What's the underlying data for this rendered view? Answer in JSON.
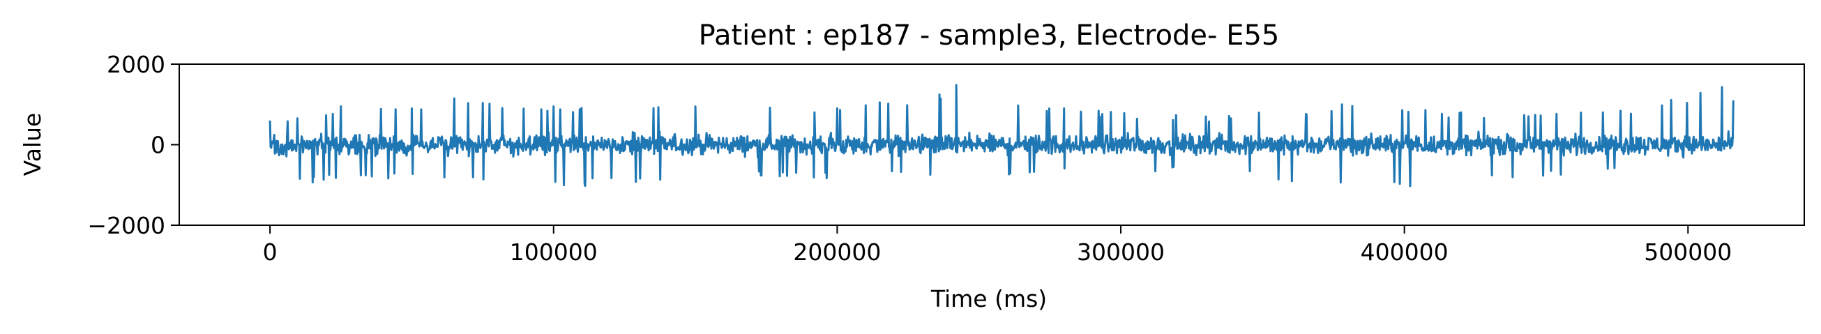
{
  "chart_data": {
    "type": "line",
    "title": "Patient : ep187 - sample3, Electrode- E55",
    "xlabel": "Time (ms)",
    "ylabel": "Value",
    "xlim": [
      -32000,
      541000
    ],
    "ylim": [
      -2000,
      2000
    ],
    "x_ticks": [
      {
        "value": 0,
        "label": "0"
      },
      {
        "value": 100000,
        "label": "100000"
      },
      {
        "value": 200000,
        "label": "200000"
      },
      {
        "value": 300000,
        "label": "300000"
      },
      {
        "value": 400000,
        "label": "400000"
      },
      {
        "value": 500000,
        "label": "500000"
      }
    ],
    "y_ticks": [
      {
        "value": -2000,
        "label": "−2000"
      },
      {
        "value": 0,
        "label": "0"
      },
      {
        "value": 2000,
        "label": "2000"
      }
    ],
    "grid": false,
    "legend": "none",
    "series": [
      {
        "color": "#1f77b4",
        "x_start": 0,
        "x_end": 516000,
        "typical_amplitude": 350,
        "envelope": [
          {
            "x": 0,
            "max": 600,
            "min": -1000
          },
          {
            "x": 25000,
            "max": 950,
            "min": -900
          },
          {
            "x": 50000,
            "max": 900,
            "min": -850
          },
          {
            "x": 65000,
            "max": 1150,
            "min": -900
          },
          {
            "x": 100000,
            "max": 950,
            "min": -1100
          },
          {
            "x": 150000,
            "max": 950,
            "min": -800
          },
          {
            "x": 200000,
            "max": 900,
            "min": -850
          },
          {
            "x": 215000,
            "max": 1050,
            "min": -800
          },
          {
            "x": 242000,
            "max": 1480,
            "min": -900
          },
          {
            "x": 280000,
            "max": 900,
            "min": -700
          },
          {
            "x": 330000,
            "max": 700,
            "min": -650
          },
          {
            "x": 378000,
            "max": 1000,
            "min": -1100
          },
          {
            "x": 420000,
            "max": 800,
            "min": -1000
          },
          {
            "x": 470000,
            "max": 800,
            "min": -700
          },
          {
            "x": 512000,
            "max": 1430,
            "min": -800
          },
          {
            "x": 516000,
            "max": 1100,
            "min": -500
          }
        ]
      }
    ]
  }
}
